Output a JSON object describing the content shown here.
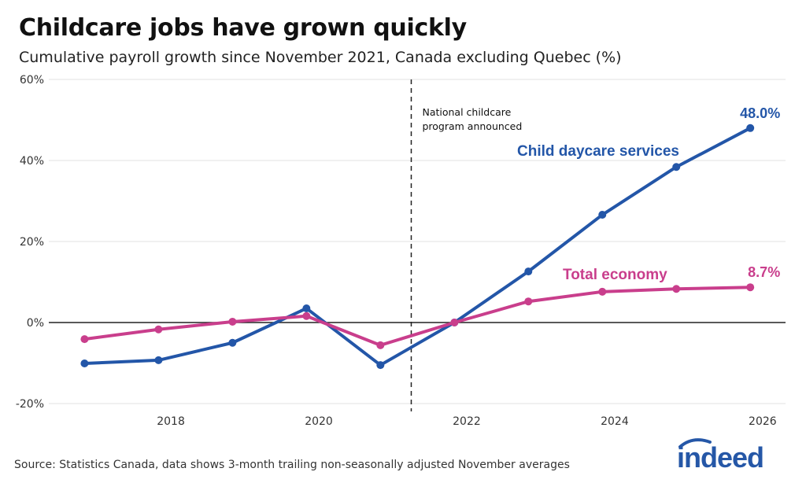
{
  "title": "Childcare jobs have grown quickly",
  "subtitle": "Cumulative payroll growth since November 2021, Canada excluding Quebec (%)",
  "source": "Source: Statistics Canada, data shows 3-month trailing non-seasonally adjusted November averages",
  "logo_text": "indeed",
  "chart_data": {
    "type": "line",
    "title": "Childcare jobs have grown quickly",
    "subtitle": "Cumulative payroll growth since November 2021, Canada excluding Quebec (%)",
    "xlabel": "",
    "ylabel": "",
    "x": [
      "2016-11",
      "2017-11",
      "2018-11",
      "2019-11",
      "2020-11",
      "2021-11",
      "2022-11",
      "2023-11",
      "2024-11",
      "2025-11"
    ],
    "xlim": [
      "2016-05",
      "2026-04"
    ],
    "ylim": [
      -20,
      60
    ],
    "yticks": [
      -20,
      0,
      20,
      40,
      60
    ],
    "ytick_labels": [
      "-20%",
      "0%",
      "20%",
      "40%",
      "60%"
    ],
    "xticks": [
      "2018",
      "2020",
      "2022",
      "2024",
      "2026"
    ],
    "grid": "horizontal",
    "legend": "none (direct labels)",
    "series": [
      {
        "name": "Child daycare services",
        "color": "#2356a8",
        "values": [
          -10.1,
          -9.3,
          -5.0,
          3.5,
          -10.5,
          0.0,
          12.6,
          26.6,
          38.4,
          48.0
        ],
        "end_label": "48.0%"
      },
      {
        "name": "Total economy",
        "color": "#c93e8c",
        "values": [
          -4.1,
          -1.7,
          0.2,
          1.6,
          -5.6,
          0.0,
          5.2,
          7.6,
          8.3,
          8.7
        ],
        "end_label": "8.7%"
      }
    ],
    "annotations": [
      {
        "text_lines": [
          "National childcare",
          "program announced"
        ],
        "x": "2021-04",
        "style": "dashed vertical line"
      }
    ]
  }
}
